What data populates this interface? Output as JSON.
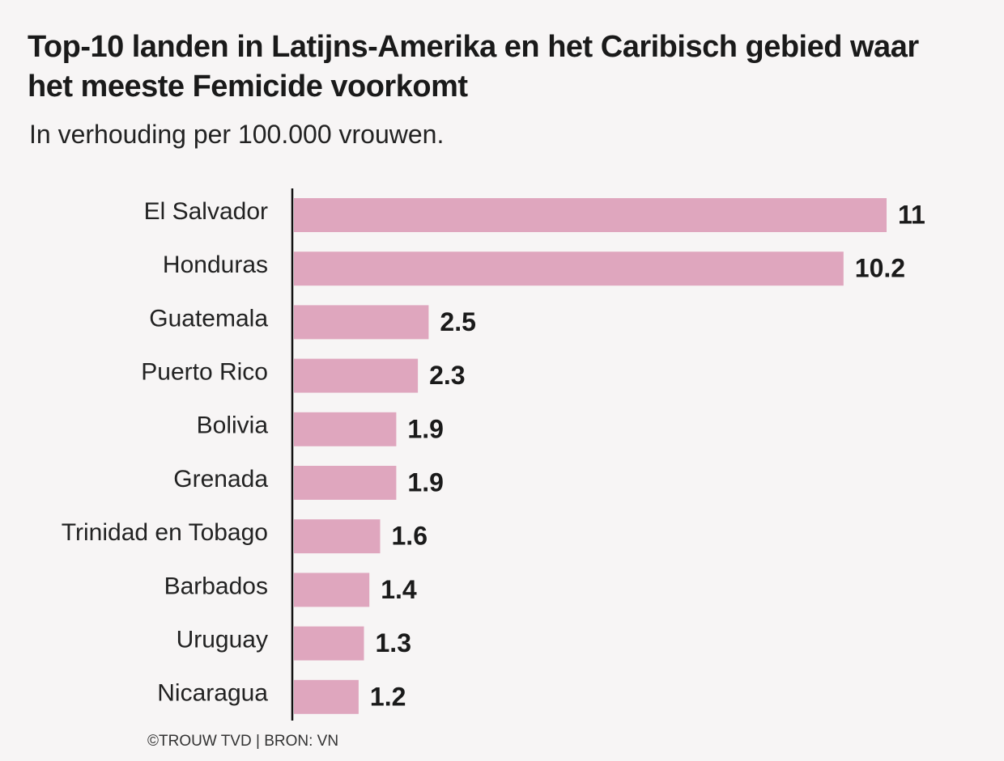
{
  "chart_data": {
    "type": "bar",
    "orientation": "horizontal",
    "title": "Top-10 landen in Latijns-Amerika en het Caribisch gebied waar het meeste Femicide voorkomt",
    "subtitle": "In verhouding per 100.000 vrouwen.",
    "categories": [
      "El Salvador",
      "Honduras",
      "Guatemala",
      "Puerto Rico",
      "Bolivia",
      "Grenada",
      "Trinidad en Tobago",
      "Barbados",
      "Uruguay",
      "Nicaragua"
    ],
    "values": [
      11,
      10.2,
      2.5,
      2.3,
      1.9,
      1.9,
      1.6,
      1.4,
      1.3,
      1.2
    ],
    "value_labels": [
      "11",
      "10.2",
      "2.5",
      "2.3",
      "1.9",
      "1.9",
      "1.6",
      "1.4",
      "1.3",
      "1.2"
    ],
    "xlim": [
      0,
      11
    ],
    "grid": false,
    "bar_color": "#dfa6be",
    "axis_color": "#111111",
    "source": "©TROUW TVD | BRON: VN"
  }
}
